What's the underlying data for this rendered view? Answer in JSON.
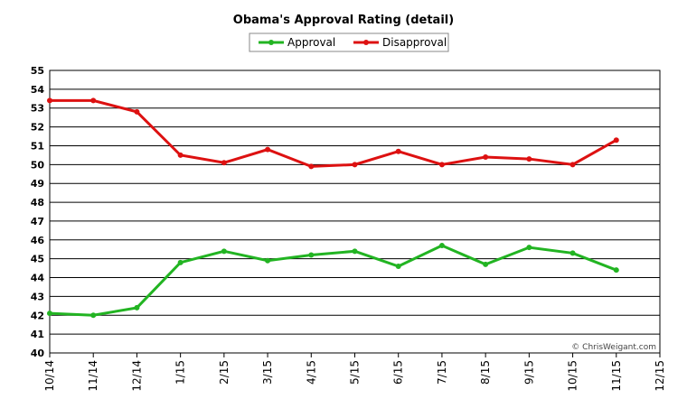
{
  "chart_data": {
    "type": "line",
    "title": "Obama's Approval Rating (detail)",
    "categories": [
      "10/14",
      "11/14",
      "12/14",
      "1/15",
      "2/15",
      "3/15",
      "4/15",
      "5/15",
      "6/15",
      "7/15",
      "8/15",
      "9/15",
      "10/15",
      "11/15",
      "12/15"
    ],
    "series": [
      {
        "name": "Approval",
        "color": "#22b422",
        "values": [
          42.1,
          42.0,
          42.4,
          44.8,
          45.4,
          44.9,
          45.2,
          45.4,
          44.6,
          45.7,
          44.7,
          45.6,
          45.3,
          44.4,
          null
        ]
      },
      {
        "name": "Disapproval",
        "color": "#dd1111",
        "values": [
          53.4,
          53.4,
          52.8,
          50.5,
          50.1,
          50.8,
          49.9,
          50.0,
          50.7,
          50.0,
          50.4,
          50.3,
          50.0,
          51.3,
          null
        ]
      }
    ],
    "ylim": [
      40,
      55
    ],
    "yticks": [
      40,
      41,
      42,
      43,
      44,
      45,
      46,
      47,
      48,
      49,
      50,
      51,
      52,
      53,
      54,
      55
    ],
    "grid": true,
    "legend": "top",
    "annotation": "© ChrisWeigant.com"
  }
}
